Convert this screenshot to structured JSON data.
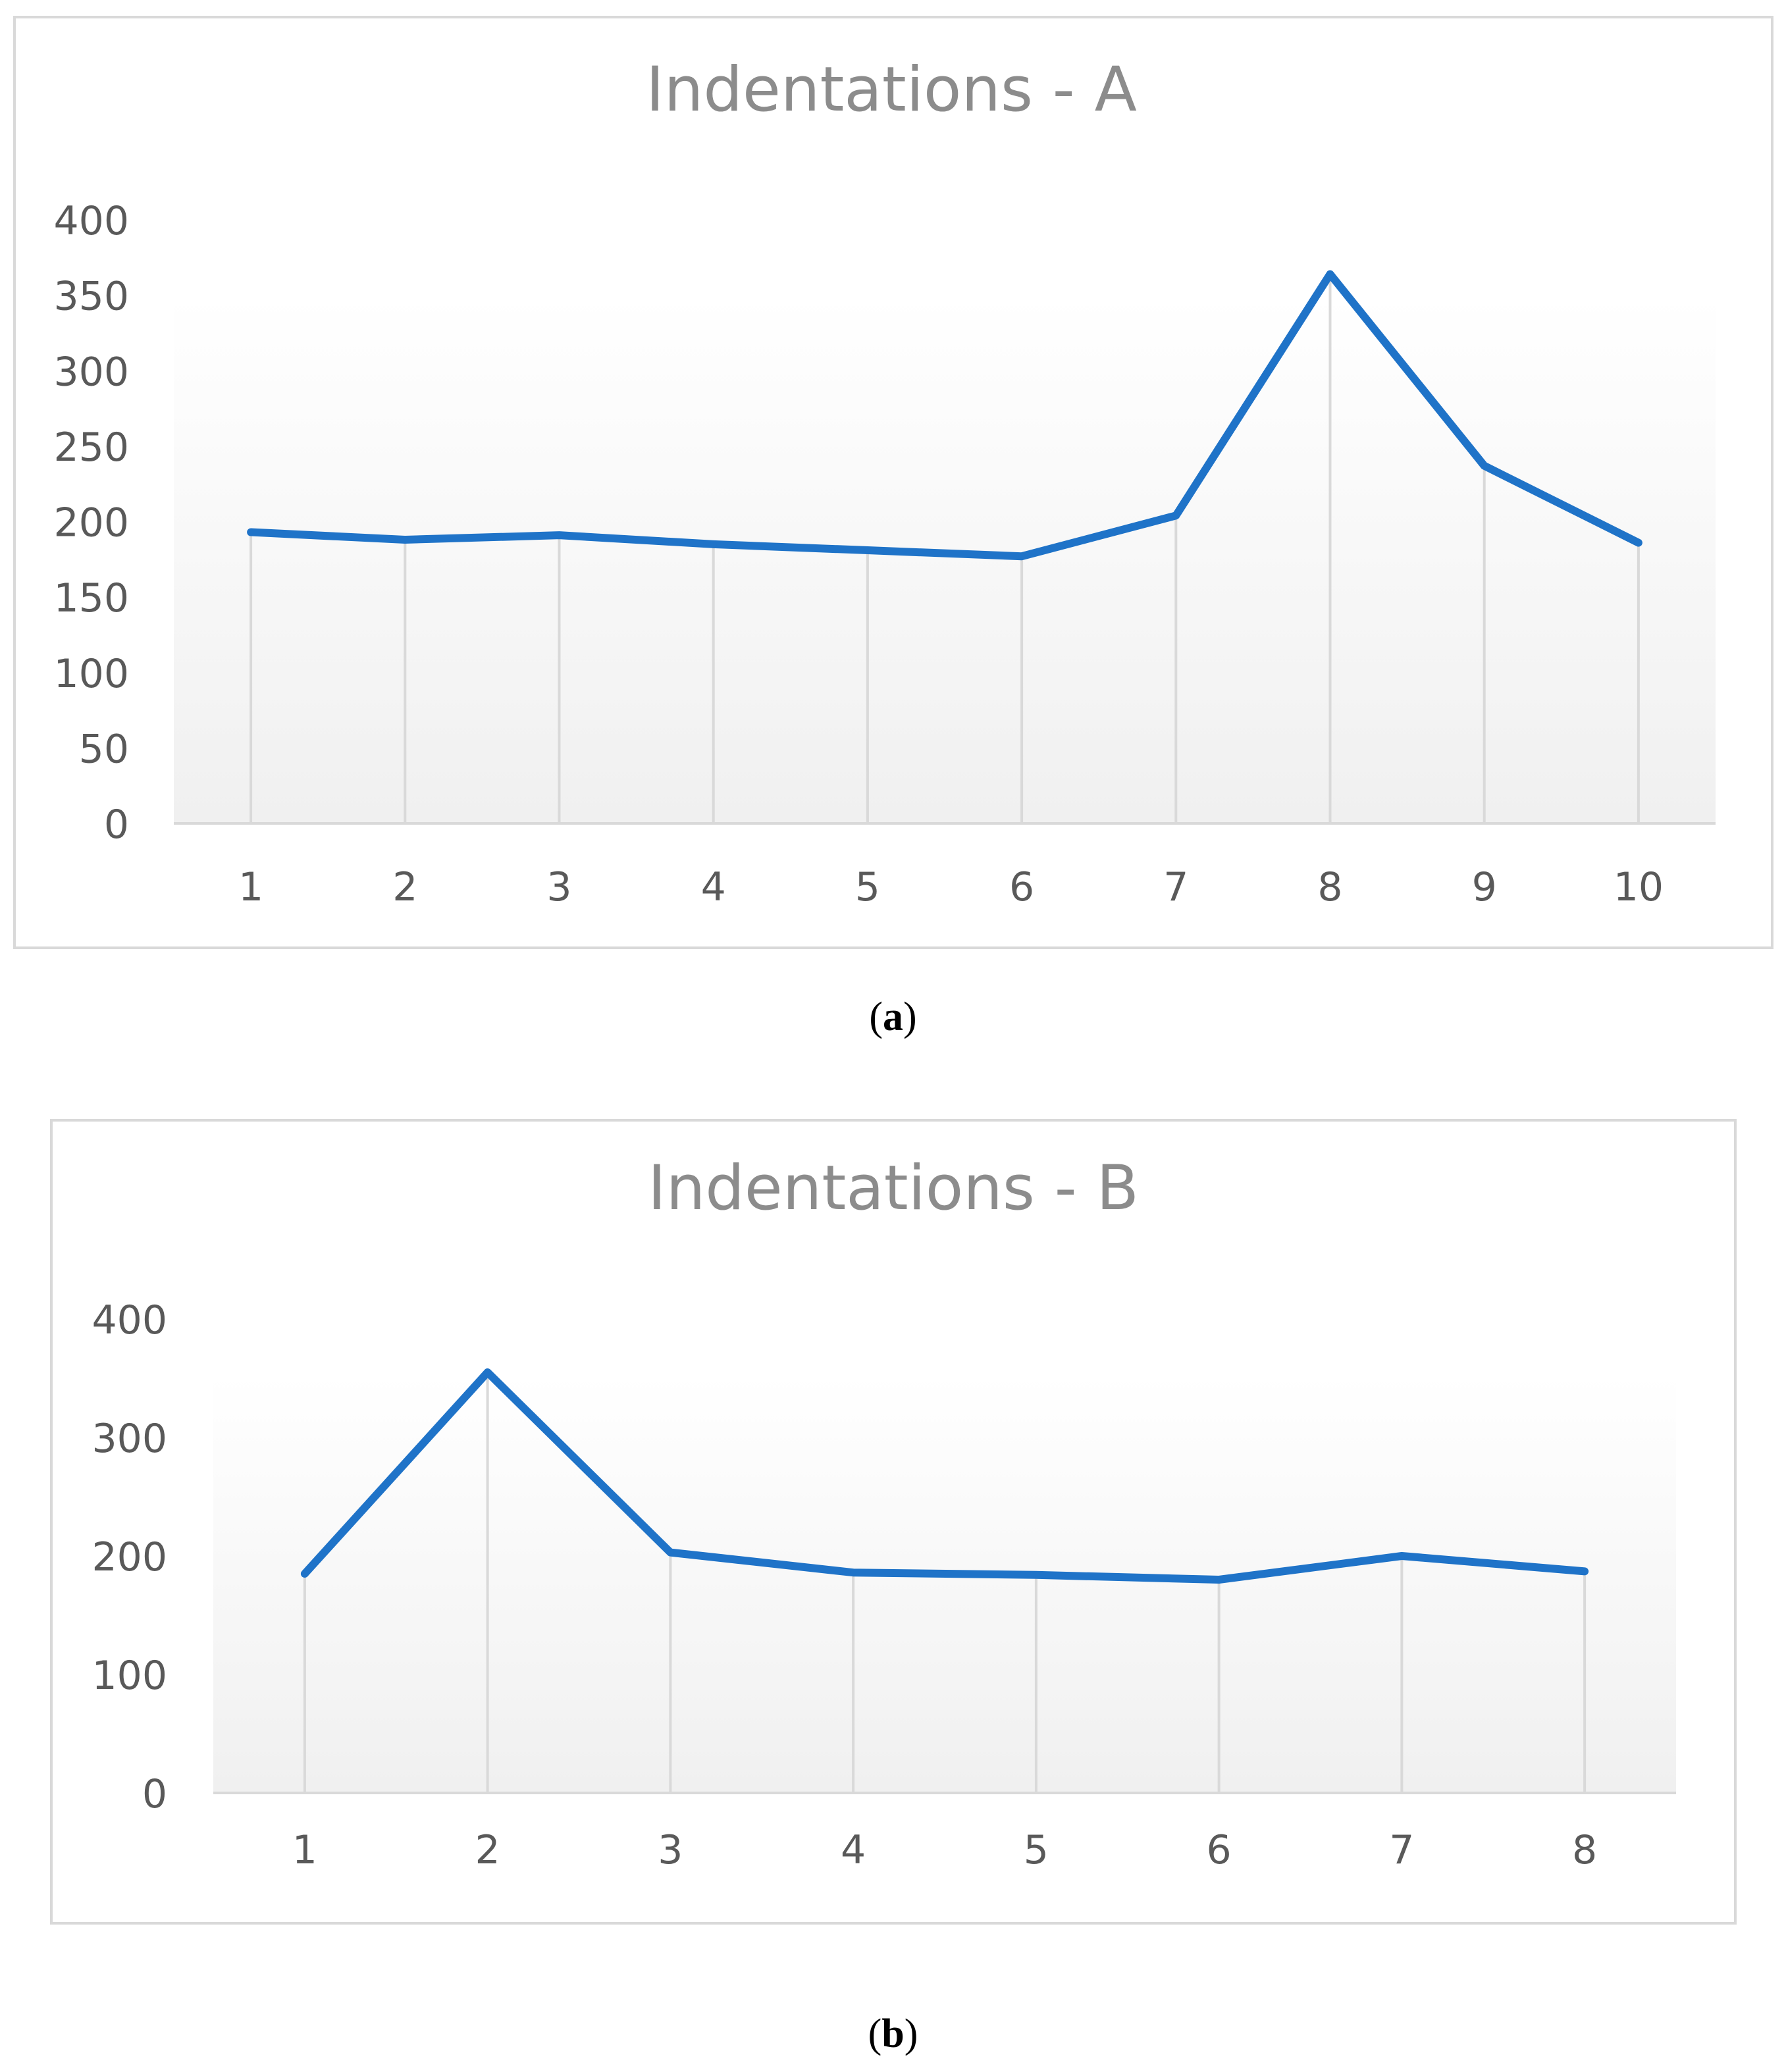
{
  "chart_data": [
    {
      "type": "line",
      "title": "Indentations - A",
      "categories": [
        "1",
        "2",
        "3",
        "4",
        "5",
        "6",
        "7",
        "8",
        "9",
        "10"
      ],
      "series": [
        {
          "values": [
            193,
            188,
            191,
            185,
            181,
            177,
            204,
            364,
            237,
            186
          ]
        }
      ],
      "yticks": [
        "0",
        "50",
        "100",
        "150",
        "200",
        "250",
        "300",
        "350",
        "400"
      ],
      "ylim": [
        0,
        400
      ],
      "grid": "vertical drop lines",
      "legend": "none",
      "line_color": "#1f73c8",
      "caption": {
        "open": "(",
        "label": "a",
        "close": ")"
      }
    },
    {
      "type": "line",
      "title": "Indentations - B",
      "categories": [
        "1",
        "2",
        "3",
        "4",
        "5",
        "6",
        "7",
        "8"
      ],
      "series": [
        {
          "values": [
            185,
            355,
            203,
            186,
            184,
            180,
            200,
            187
          ]
        }
      ],
      "yticks": [
        "0",
        "100",
        "200",
        "300",
        "400"
      ],
      "ylim": [
        0,
        400
      ],
      "grid": "vertical drop lines",
      "legend": "none",
      "line_color": "#1f73c8",
      "caption": {
        "open": "(",
        "label": "b",
        "close": ")"
      }
    }
  ]
}
